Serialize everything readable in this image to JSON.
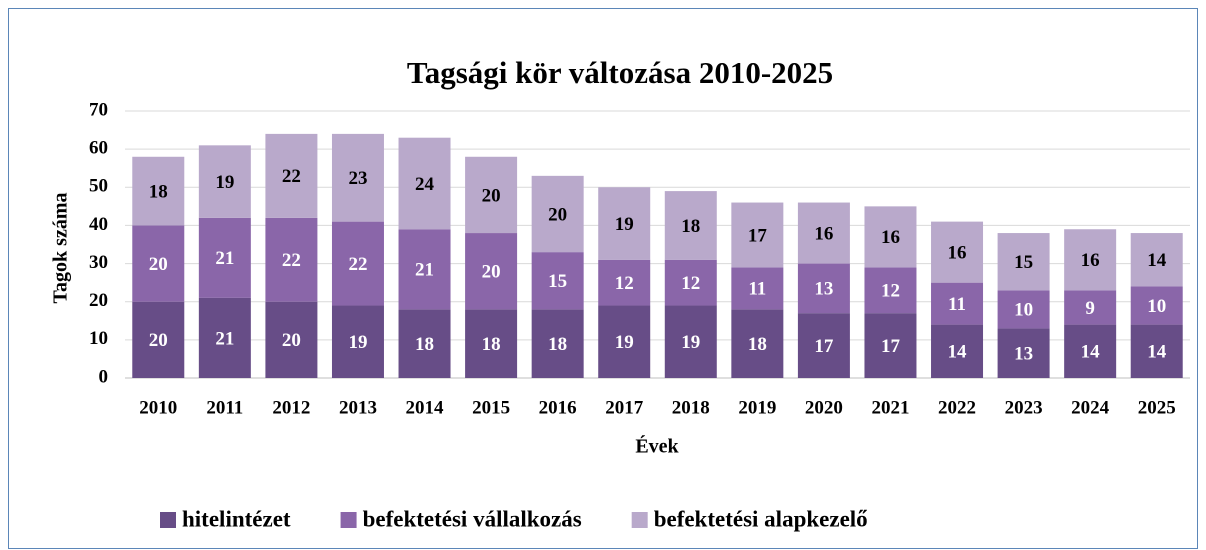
{
  "chart_data": {
    "type": "stacked_bar",
    "title": "Tagsági kör változása 2010-2025",
    "x_label": "Évek",
    "y_label": "Tagok száma",
    "categories": [
      "2010",
      "2011",
      "2012",
      "2013",
      "2014",
      "2015",
      "2016",
      "2017",
      "2018",
      "2019",
      "2020",
      "2021",
      "2022",
      "2023",
      "2024",
      "2025"
    ],
    "series": [
      {
        "name": "hitelintézet",
        "color": "#674d87",
        "label_color": "#ffffff",
        "values": [
          20,
          21,
          20,
          19,
          18,
          18,
          18,
          19,
          19,
          18,
          17,
          17,
          14,
          13,
          14,
          14
        ]
      },
      {
        "name": "befektetési vállalkozás",
        "color": "#8a66a9",
        "label_color": "#ffffff",
        "values": [
          20,
          21,
          22,
          22,
          21,
          20,
          15,
          12,
          12,
          11,
          13,
          12,
          11,
          10,
          9,
          10
        ]
      },
      {
        "name": "befektetési alapkezelő",
        "color": "#b9a9cb",
        "label_color": "#000000",
        "values": [
          18,
          19,
          22,
          23,
          24,
          20,
          20,
          19,
          18,
          17,
          16,
          16,
          16,
          15,
          16,
          14
        ]
      }
    ],
    "ylim": [
      0,
      70
    ],
    "yticks": [
      0,
      10,
      20,
      30,
      40,
      50,
      60,
      70
    ],
    "grid": true,
    "legend": "bottom"
  }
}
